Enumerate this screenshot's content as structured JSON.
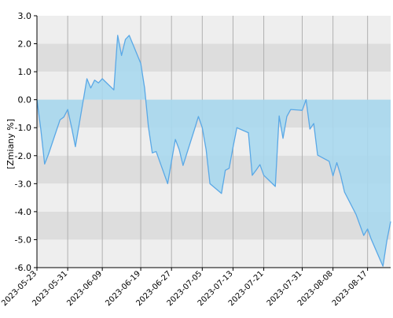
{
  "chart_data": {
    "type": "area",
    "title": "",
    "xlabel": "",
    "ylabel": "[Zmiany %]",
    "ylim": [
      -6.0,
      3.0
    ],
    "grid": true,
    "yticks": [
      "3.0",
      "2.0",
      "1.0",
      "0.0",
      "-1.0",
      "-2.0",
      "-3.0",
      "-4.0",
      "-5.0",
      "-6.0"
    ],
    "xticks": [
      {
        "label": "2023-05-23",
        "date": "2023-05-23"
      },
      {
        "label": "2023-05-31",
        "date": "2023-05-31"
      },
      {
        "label": "2023-06-09",
        "date": "2023-06-09"
      },
      {
        "label": "2023-06-19",
        "date": "2023-06-19"
      },
      {
        "label": "2023-06-27",
        "date": "2023-06-27"
      },
      {
        "label": "2023-07-05",
        "date": "2023-07-05"
      },
      {
        "label": "2023-07-13",
        "date": "2023-07-13"
      },
      {
        "label": "2023-07-21",
        "date": "2023-07-21"
      },
      {
        "label": "2023-07-31",
        "date": "2023-07-31"
      },
      {
        "label": "2023-08-08",
        "date": "2023-08-08"
      },
      {
        "label": "2023-08-17",
        "date": "2023-08-17"
      }
    ],
    "colors": {
      "line": "#5aa8e6",
      "fill": "#a9d8ee",
      "band_light": "#eeeeee",
      "band_dark": "#dddddd",
      "vgrid": "#b0b0b0",
      "axis": "#000000"
    },
    "series": [
      {
        "points": [
          {
            "x": "2023-05-23",
            "y": 0.0
          },
          {
            "x": "2023-05-24",
            "y": -1.05
          },
          {
            "x": "2023-05-25",
            "y": -2.3
          },
          {
            "x": "2023-05-26",
            "y": -1.95
          },
          {
            "x": "2023-05-29",
            "y": -0.72
          },
          {
            "x": "2023-05-30",
            "y": -0.62
          },
          {
            "x": "2023-05-31",
            "y": -0.35
          },
          {
            "x": "2023-06-01",
            "y": -0.98
          },
          {
            "x": "2023-06-02",
            "y": -1.68
          },
          {
            "x": "2023-06-05",
            "y": 0.75
          },
          {
            "x": "2023-06-06",
            "y": 0.42
          },
          {
            "x": "2023-06-07",
            "y": 0.7
          },
          {
            "x": "2023-06-08",
            "y": 0.6
          },
          {
            "x": "2023-06-09",
            "y": 0.75
          },
          {
            "x": "2023-06-12",
            "y": 0.35
          },
          {
            "x": "2023-06-13",
            "y": 2.3
          },
          {
            "x": "2023-06-14",
            "y": 1.58
          },
          {
            "x": "2023-06-15",
            "y": 2.15
          },
          {
            "x": "2023-06-16",
            "y": 2.3
          },
          {
            "x": "2023-06-19",
            "y": 1.3
          },
          {
            "x": "2023-06-20",
            "y": 0.42
          },
          {
            "x": "2023-06-21",
            "y": -0.98
          },
          {
            "x": "2023-06-22",
            "y": -1.9
          },
          {
            "x": "2023-06-23",
            "y": -1.85
          },
          {
            "x": "2023-06-26",
            "y": -3.0
          },
          {
            "x": "2023-06-27",
            "y": -2.2
          },
          {
            "x": "2023-06-28",
            "y": -1.42
          },
          {
            "x": "2023-06-29",
            "y": -1.78
          },
          {
            "x": "2023-06-30",
            "y": -2.35
          },
          {
            "x": "2023-07-03",
            "y": -1.05
          },
          {
            "x": "2023-07-04",
            "y": -0.6
          },
          {
            "x": "2023-07-05",
            "y": -1.0
          },
          {
            "x": "2023-07-06",
            "y": -1.78
          },
          {
            "x": "2023-07-07",
            "y": -3.0
          },
          {
            "x": "2023-07-10",
            "y": -3.35
          },
          {
            "x": "2023-07-11",
            "y": -2.52
          },
          {
            "x": "2023-07-12",
            "y": -2.45
          },
          {
            "x": "2023-07-13",
            "y": -1.7
          },
          {
            "x": "2023-07-14",
            "y": -1.0
          },
          {
            "x": "2023-07-17",
            "y": -1.18
          },
          {
            "x": "2023-07-18",
            "y": -2.7
          },
          {
            "x": "2023-07-19",
            "y": -2.52
          },
          {
            "x": "2023-07-20",
            "y": -2.32
          },
          {
            "x": "2023-07-21",
            "y": -2.7
          },
          {
            "x": "2023-07-24",
            "y": -3.1
          },
          {
            "x": "2023-07-25",
            "y": -0.58
          },
          {
            "x": "2023-07-26",
            "y": -1.38
          },
          {
            "x": "2023-07-27",
            "y": -0.6
          },
          {
            "x": "2023-07-28",
            "y": -0.35
          },
          {
            "x": "2023-07-31",
            "y": -0.38
          },
          {
            "x": "2023-08-01",
            "y": 0.0
          },
          {
            "x": "2023-08-02",
            "y": -1.05
          },
          {
            "x": "2023-08-03",
            "y": -0.85
          },
          {
            "x": "2023-08-04",
            "y": -1.98
          },
          {
            "x": "2023-08-07",
            "y": -2.2
          },
          {
            "x": "2023-08-08",
            "y": -2.72
          },
          {
            "x": "2023-08-09",
            "y": -2.25
          },
          {
            "x": "2023-08-10",
            "y": -2.7
          },
          {
            "x": "2023-08-11",
            "y": -3.3
          },
          {
            "x": "2023-08-14",
            "y": -4.1
          },
          {
            "x": "2023-08-16",
            "y": -4.85
          },
          {
            "x": "2023-08-17",
            "y": -4.62
          },
          {
            "x": "2023-08-18",
            "y": -5.0
          },
          {
            "x": "2023-08-21",
            "y": -5.95
          },
          {
            "x": "2023-08-22",
            "y": -5.05
          },
          {
            "x": "2023-08-23",
            "y": -4.35
          }
        ]
      }
    ]
  }
}
